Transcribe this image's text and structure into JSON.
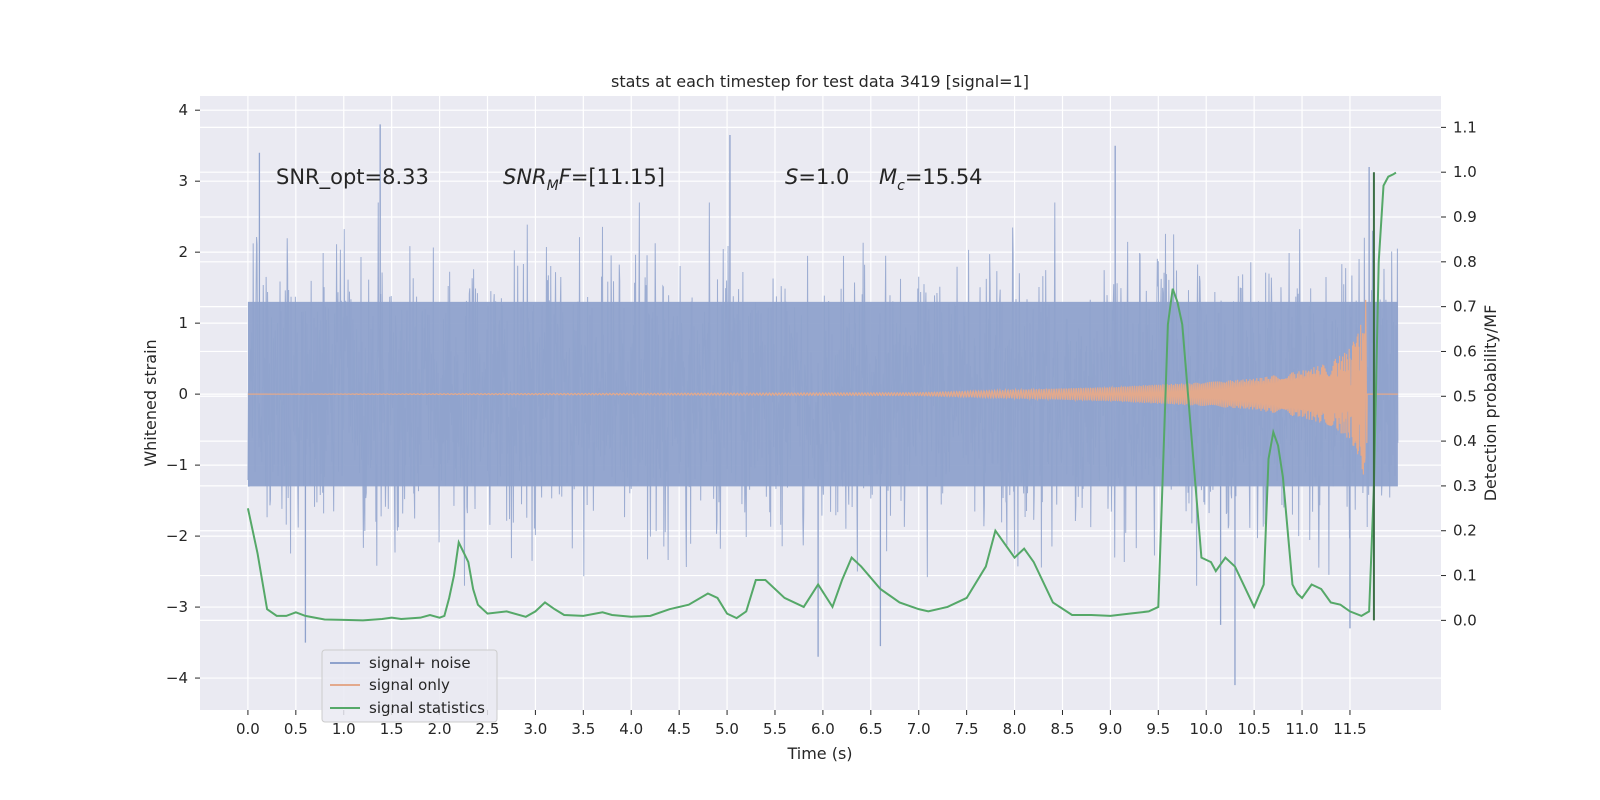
{
  "chart_data": {
    "type": "line",
    "title": "stats at each timestep for test data 3419 [signal=1]",
    "xlabel": "Time (s)",
    "ylabel_left": "Whitened strain",
    "ylabel_right": "Detection probability/MF",
    "xlim": [
      -0.5,
      12.45
    ],
    "ylim_left": [
      -4.45,
      4.2
    ],
    "ylim_right": [
      -0.2,
      1.17
    ],
    "x_ticks": [
      0.0,
      0.5,
      1.0,
      1.5,
      2.0,
      2.5,
      3.0,
      3.5,
      4.0,
      4.5,
      5.0,
      5.5,
      6.0,
      6.5,
      7.0,
      7.5,
      8.0,
      8.5,
      9.0,
      9.5,
      10.0,
      10.5,
      11.0,
      11.5
    ],
    "x_tick_labels": [
      "0.0",
      "0.5",
      "1.0",
      "1.5",
      "2.0",
      "2.5",
      "3.0",
      "3.5",
      "4.0",
      "4.5",
      "5.0",
      "5.5",
      "6.0",
      "6.5",
      "7.0",
      "7.5",
      "8.0",
      "8.5",
      "9.0",
      "9.5",
      "10.0",
      "10.5",
      "11.0",
      "11.5"
    ],
    "y_left_ticks": [
      -4,
      -3,
      -2,
      -1,
      0,
      1,
      2,
      3,
      4
    ],
    "y_left_tick_labels": [
      "−4",
      "−3",
      "−2",
      "−1",
      "0",
      "1",
      "2",
      "3",
      "4"
    ],
    "y_right_ticks": [
      0.0,
      0.1,
      0.2,
      0.3,
      0.4,
      0.5,
      0.6,
      0.7,
      0.8,
      0.9,
      1.0,
      1.1
    ],
    "y_right_tick_labels": [
      "0.0",
      "0.1",
      "0.2",
      "0.3",
      "0.4",
      "0.5",
      "0.6",
      "0.7",
      "0.8",
      "0.9",
      "1.0",
      "1.1"
    ],
    "grid": true,
    "legend_position": "lower-left",
    "annotations": [
      {
        "text": "SNR_opt=8.33",
        "x": 0.2,
        "y": 3.0
      },
      {
        "text": "SNRMF=[11.15]",
        "x": 2.6,
        "y": 3.0
      },
      {
        "text": "S=1.0",
        "x": 5.6,
        "y": 3.0
      },
      {
        "text": "Mc=15.54",
        "x": 6.6,
        "y": 3.0
      }
    ],
    "series": [
      {
        "name": "signal+ noise",
        "axis": "left",
        "color": "#8fa2cc",
        "t_range": [
          0.0,
          12.0
        ],
        "typical_band": [
          -1.3,
          1.3
        ],
        "spikes": [
          {
            "x": 1.38,
            "y": 3.8
          },
          {
            "x": 5.03,
            "y": 3.65
          },
          {
            "x": 9.05,
            "y": 3.5
          },
          {
            "x": 11.7,
            "y": 3.2
          },
          {
            "x": 0.12,
            "y": 3.4
          },
          {
            "x": 10.3,
            "y": -4.1
          },
          {
            "x": 5.95,
            "y": -3.7
          },
          {
            "x": 6.6,
            "y": -3.55
          },
          {
            "x": 0.6,
            "y": -3.5
          },
          {
            "x": 11.5,
            "y": -3.3
          },
          {
            "x": 10.15,
            "y": -3.25
          }
        ]
      },
      {
        "name": "signal only",
        "axis": "left",
        "color": "#e3a98c",
        "chirp": {
          "end_time": 11.68,
          "peak_amplitude": 1.45,
          "x": [
            0.0,
            7.0,
            8.0,
            9.0,
            10.0,
            10.5,
            11.0,
            11.3,
            11.5,
            11.6,
            11.68,
            12.0
          ],
          "envelope": [
            0.0,
            0.02,
            0.06,
            0.1,
            0.17,
            0.22,
            0.33,
            0.45,
            0.65,
            0.9,
            1.45,
            0.0
          ]
        }
      },
      {
        "name": "signal statistics",
        "axis": "right",
        "color": "#55a868",
        "x": [
          0.0,
          0.1,
          0.2,
          0.3,
          0.4,
          0.5,
          0.6,
          0.8,
          1.0,
          1.2,
          1.4,
          1.5,
          1.6,
          1.8,
          1.9,
          2.0,
          2.05,
          2.1,
          2.15,
          2.2,
          2.3,
          2.35,
          2.4,
          2.5,
          2.7,
          2.9,
          3.0,
          3.1,
          3.2,
          3.3,
          3.5,
          3.7,
          3.8,
          3.9,
          4.0,
          4.2,
          4.4,
          4.6,
          4.8,
          4.9,
          5.0,
          5.1,
          5.2,
          5.3,
          5.4,
          5.6,
          5.8,
          5.95,
          6.1,
          6.2,
          6.3,
          6.4,
          6.6,
          6.8,
          7.0,
          7.1,
          7.3,
          7.5,
          7.7,
          7.8,
          7.9,
          8.0,
          8.1,
          8.2,
          8.4,
          8.6,
          8.8,
          9.0,
          9.2,
          9.4,
          9.5,
          9.6,
          9.65,
          9.7,
          9.75,
          9.85,
          9.95,
          10.05,
          10.1,
          10.2,
          10.3,
          10.5,
          10.6,
          10.65,
          10.7,
          10.75,
          10.8,
          10.85,
          10.9,
          10.95,
          11.0,
          11.1,
          11.2,
          11.3,
          11.4,
          11.5,
          11.62,
          11.7,
          11.75,
          11.8,
          11.85,
          11.9,
          11.95,
          11.98
        ],
        "values": [
          0.25,
          0.15,
          0.025,
          0.01,
          0.01,
          0.018,
          0.01,
          0.002,
          0.001,
          0.0,
          0.003,
          0.006,
          0.003,
          0.006,
          0.012,
          0.006,
          0.01,
          0.05,
          0.1,
          0.174,
          0.13,
          0.07,
          0.035,
          0.015,
          0.02,
          0.008,
          0.02,
          0.04,
          0.025,
          0.012,
          0.01,
          0.018,
          0.012,
          0.01,
          0.008,
          0.01,
          0.025,
          0.035,
          0.06,
          0.05,
          0.015,
          0.005,
          0.02,
          0.09,
          0.09,
          0.05,
          0.03,
          0.08,
          0.03,
          0.09,
          0.14,
          0.12,
          0.07,
          0.04,
          0.025,
          0.02,
          0.03,
          0.05,
          0.12,
          0.2,
          0.17,
          0.14,
          0.16,
          0.13,
          0.04,
          0.012,
          0.012,
          0.01,
          0.015,
          0.02,
          0.03,
          0.66,
          0.74,
          0.71,
          0.66,
          0.4,
          0.14,
          0.13,
          0.11,
          0.14,
          0.12,
          0.03,
          0.08,
          0.36,
          0.42,
          0.39,
          0.32,
          0.2,
          0.08,
          0.06,
          0.05,
          0.08,
          0.07,
          0.04,
          0.035,
          0.02,
          0.01,
          0.02,
          0.3,
          0.8,
          0.97,
          0.99,
          0.995,
          0.999
        ]
      }
    ],
    "threshold_line": {
      "x": 11.75,
      "from": 0.0,
      "to": 1.0
    }
  }
}
